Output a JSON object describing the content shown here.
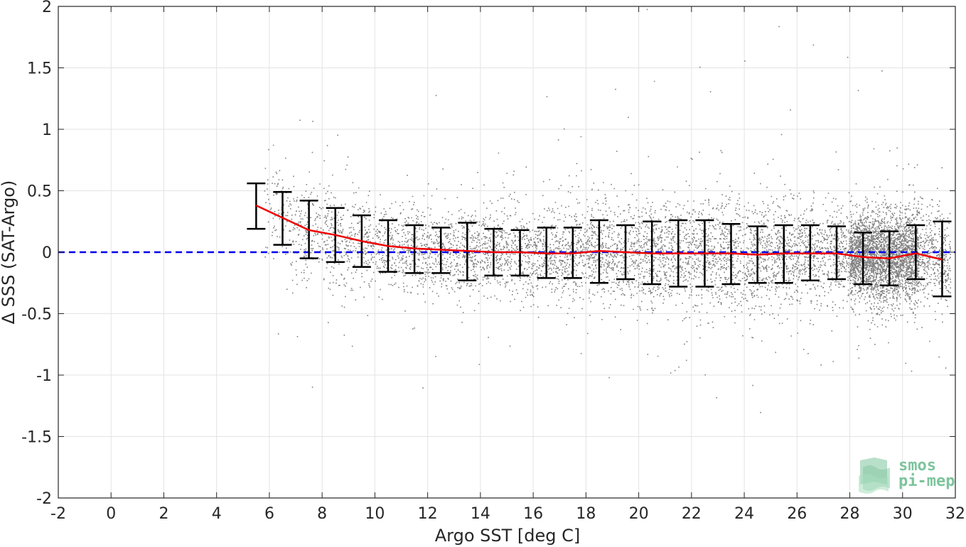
{
  "chart_data": {
    "type": "scatter",
    "title": "",
    "xlabel": "Argo SST [deg C]",
    "ylabel": "Δ SSS (SAT-Argo)",
    "xlim": [
      -2,
      32
    ],
    "ylim": [
      -2,
      2
    ],
    "xticks": [
      -2,
      0,
      2,
      4,
      6,
      8,
      10,
      12,
      14,
      16,
      18,
      20,
      22,
      24,
      26,
      28,
      30,
      32
    ],
    "yticks": [
      -2,
      -1.5,
      -1,
      -0.5,
      0,
      0.5,
      1,
      1.5,
      2
    ],
    "xtick_labels": [
      "-2",
      "0",
      "2",
      "4",
      "6",
      "8",
      "10",
      "12",
      "14",
      "16",
      "18",
      "20",
      "22",
      "24",
      "26",
      "28",
      "30",
      "32"
    ],
    "ytick_labels": [
      "-2",
      "-1.5",
      "-1",
      "-0.5",
      "0",
      "0.5",
      "1",
      "1.5",
      "2"
    ],
    "grid": true,
    "reference_line": {
      "y": 0,
      "style": "dashed",
      "color": "#0000ee"
    },
    "colors": {
      "scatter": "#808080",
      "mean_line": "#ee0000",
      "error_bars": "#000000",
      "grid": "#e3e3e3",
      "axes": "#262626"
    },
    "point_cloud": {
      "x_range": [
        5.8,
        31.8
      ],
      "typical_spread_by_x": [
        [
          6,
          0.2
        ],
        [
          8,
          0.2
        ],
        [
          10,
          0.17
        ],
        [
          14,
          0.17
        ],
        [
          18,
          0.18
        ],
        [
          20,
          0.2
        ],
        [
          22,
          0.22
        ],
        [
          26,
          0.2
        ],
        [
          28,
          0.17
        ],
        [
          30,
          0.18
        ]
      ],
      "outliers": [
        [
          20.3,
          1.98
        ],
        [
          25.3,
          1.84
        ],
        [
          26.6,
          1.69
        ],
        [
          27.9,
          1.59
        ],
        [
          29.2,
          1.48
        ],
        [
          22.3,
          1.51
        ],
        [
          24,
          1.56
        ],
        [
          11.8,
          -1.1
        ],
        [
          24.3,
          -1.08
        ],
        [
          24.6,
          -1.3
        ],
        [
          12.3,
          1.28
        ],
        [
          16.5,
          1.27
        ],
        [
          19.1,
          1.33
        ],
        [
          22.7,
          1.31
        ],
        [
          28.3,
          1.32
        ],
        [
          15.1,
          -0.76
        ],
        [
          17.8,
          -0.82
        ],
        [
          30.1,
          -0.9
        ],
        [
          26.4,
          -0.82
        ],
        [
          21.5,
          -0.93
        ]
      ]
    },
    "series": [
      {
        "name": "",
        "type": "errorbar",
        "x": [
          5.5,
          6.5,
          7.5,
          8.5,
          9.5,
          10.5,
          11.5,
          12.5,
          13.5,
          14.5,
          15.5,
          16.5,
          17.5,
          18.5,
          19.5,
          20.5,
          21.5,
          22.5,
          23.5,
          24.5,
          25.5,
          26.5,
          27.5,
          28.5,
          29.5,
          30.5,
          31.5
        ],
        "mean": [
          0.38,
          0.28,
          0.18,
          0.14,
          0.09,
          0.05,
          0.03,
          0.02,
          0.01,
          0.0,
          0.0,
          -0.01,
          -0.01,
          0.01,
          0.0,
          -0.01,
          -0.01,
          -0.01,
          -0.01,
          -0.02,
          -0.01,
          -0.01,
          -0.01,
          -0.04,
          -0.05,
          -0.01,
          -0.06
        ],
        "upper": [
          0.56,
          0.49,
          0.42,
          0.36,
          0.3,
          0.26,
          0.22,
          0.2,
          0.24,
          0.19,
          0.18,
          0.2,
          0.2,
          0.26,
          0.22,
          0.25,
          0.26,
          0.26,
          0.23,
          0.21,
          0.22,
          0.22,
          0.21,
          0.16,
          0.17,
          0.22,
          0.25
        ],
        "lower": [
          0.19,
          0.06,
          -0.05,
          -0.08,
          -0.12,
          -0.16,
          -0.17,
          -0.17,
          -0.23,
          -0.19,
          -0.19,
          -0.21,
          -0.21,
          -0.25,
          -0.22,
          -0.26,
          -0.28,
          -0.28,
          -0.26,
          -0.25,
          -0.25,
          -0.23,
          -0.22,
          -0.26,
          -0.27,
          -0.22,
          -0.36
        ]
      }
    ]
  },
  "logo": {
    "line1": "smos",
    "line2": "pi-mep",
    "color": "#7dc49d"
  }
}
